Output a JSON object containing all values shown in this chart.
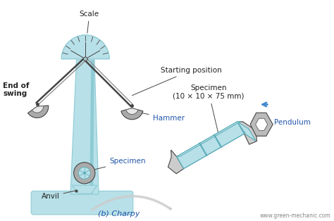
{
  "bg_color": "#ffffff",
  "teal_light": "#b8e0e8",
  "teal_mid": "#8ecbd4",
  "teal_dark": "#5aabb8",
  "gray_hammer": "#aaaaaa",
  "gray_dark": "#444444",
  "gray_mid": "#888888",
  "gray_light": "#bbbbbb",
  "gray_very_light": "#cccccc",
  "label_color": "#2255aa",
  "text_color": "#222222",
  "arrow_color": "#cccccc",
  "blue_arrow": "#4488cc",
  "labels": {
    "scale": "Scale",
    "starting_position": "Starting position",
    "hammer": "Hammer",
    "end_of_swing": "End of\nswing",
    "anvil": "Anvil",
    "specimen_left": "Specimen",
    "specimen_right": "Specimen\n(10 × 10 × 75 mm)",
    "pendulum": "Pendulum",
    "charpy": "(b) Charpy",
    "website": "www.green-mechanic.com"
  },
  "figsize": [
    4.74,
    3.14
  ],
  "dpi": 100
}
